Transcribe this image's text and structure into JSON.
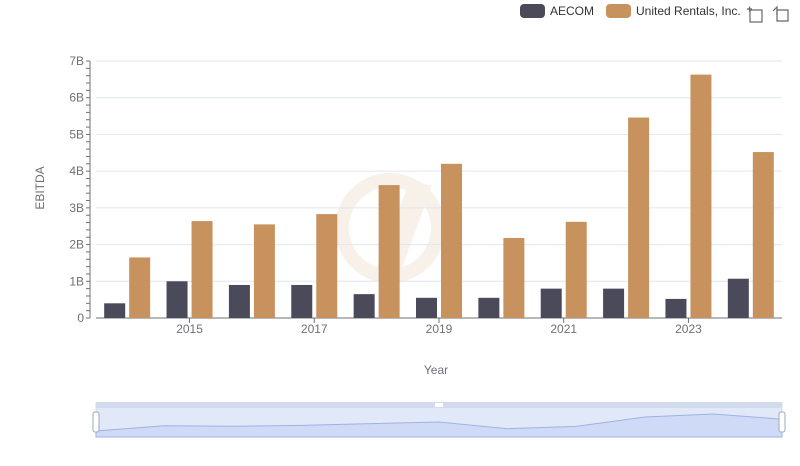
{
  "legend": {
    "aecom_label": "AECOM",
    "url_label": "United Rentals, Inc."
  },
  "toolbox": {
    "zoom_icon": "zoom-icon",
    "restore_icon": "restore-icon"
  },
  "colors": {
    "aecom": "#4a4a5a",
    "united_rentals": "#c8925e",
    "grid": "#e0e6f1",
    "axis": "#6e7079"
  },
  "chart_data": {
    "type": "bar",
    "xlabel": "Year",
    "ylabel": "EBITDA",
    "ylim": [
      0,
      7000000000
    ],
    "yticks": [
      0,
      1000000000,
      2000000000,
      3000000000,
      4000000000,
      5000000000,
      6000000000,
      7000000000
    ],
    "ytick_labels": [
      "0",
      "1B",
      "2B",
      "3B",
      "4B",
      "5B",
      "6B",
      "7B"
    ],
    "categories": [
      "2014",
      "2015",
      "2016",
      "2017",
      "2018",
      "2019",
      "2020",
      "2021",
      "2022",
      "2023",
      "2024"
    ],
    "xtick_labels": [
      "2015",
      "2017",
      "2019",
      "2021",
      "2023"
    ],
    "series": [
      {
        "name": "AECOM",
        "values": [
          400000000,
          1000000000,
          900000000,
          900000000,
          650000000,
          550000000,
          550000000,
          800000000,
          800000000,
          520000000,
          1070000000
        ]
      },
      {
        "name": "United Rentals, Inc.",
        "values": [
          1650000000,
          2640000000,
          2550000000,
          2830000000,
          3620000000,
          4200000000,
          2180000000,
          2620000000,
          5460000000,
          6630000000,
          4520000000
        ]
      }
    ],
    "legend_position": "top-right",
    "grid": true,
    "data_zoom": true
  }
}
